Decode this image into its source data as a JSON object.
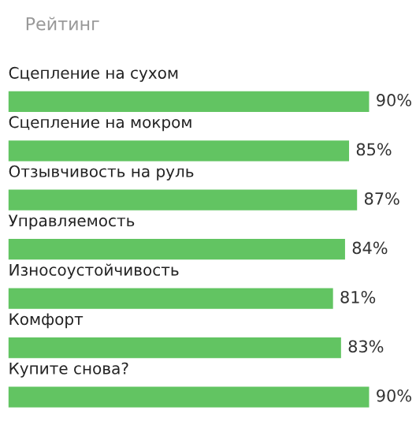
{
  "chart_data": {
    "type": "bar",
    "orientation": "horizontal",
    "title": "Рейтинг",
    "categories": [
      "Сцепление на сухом",
      "Сцепление на мокром",
      "Отзывчивость на руль",
      "Управляемость",
      "Износоустойчивость",
      "Комфорт",
      "Купите снова?"
    ],
    "values": [
      90,
      85,
      87,
      84,
      81,
      83,
      90
    ],
    "value_labels": [
      "90%",
      "85%",
      "87%",
      "84%",
      "81%",
      "83%",
      "90%"
    ],
    "color": "#62c462"
  }
}
